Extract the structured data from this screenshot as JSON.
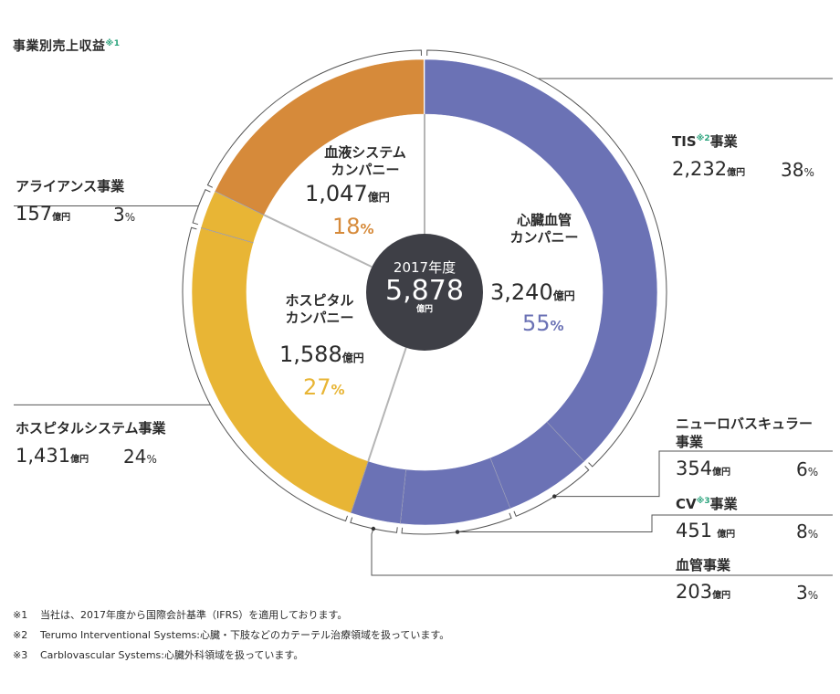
{
  "title": "事業別売上収益",
  "title_mark": "※1",
  "center": {
    "year_label": "2017年度",
    "total": "5,878",
    "unit": "億円"
  },
  "companies": [
    {
      "name_line1": "心臓血管",
      "name_line2": "カンパニー",
      "value": "3,240",
      "unit": "億円",
      "pct": "55",
      "pct_unit": "%",
      "color": "#6b72b5"
    },
    {
      "name_line1": "ホスピタル",
      "name_line2": "カンパニー",
      "value": "1,588",
      "unit": "億円",
      "pct": "27",
      "pct_unit": "%",
      "color": "#e8b535"
    },
    {
      "name_line1": "血液システム",
      "name_line2": "カンパニー",
      "value": "1,047",
      "unit": "億円",
      "pct": "18",
      "pct_unit": "%",
      "color": "#d68a3a"
    }
  ],
  "segments": {
    "tis": {
      "name": "TIS",
      "mark": "※2",
      "suffix": "事業",
      "value": "2,232",
      "unit": "億円",
      "pct": "38",
      "pct_unit": "%"
    },
    "neuro": {
      "name_line1": "ニューロバスキュラー",
      "name_line2": "事業",
      "value": "354",
      "unit": "億円",
      "pct": "6",
      "pct_unit": "%"
    },
    "cv": {
      "name": "CV",
      "mark": "※3",
      "suffix": "事業",
      "value": "451",
      "unit": "億円",
      "pct": "8",
      "pct_unit": "%"
    },
    "vascular": {
      "name": "血管事業",
      "value": "203",
      "unit": "億円",
      "pct": "3",
      "pct_unit": "%"
    },
    "alliance": {
      "name": "アライアンス事業",
      "value": "157",
      "unit": "億円",
      "pct": "3",
      "pct_unit": "%"
    },
    "hospital_system": {
      "name": "ホスピタルシステム事業",
      "value": "1,431",
      "unit": "億円",
      "pct": "24",
      "pct_unit": "%"
    }
  },
  "footnotes": [
    {
      "mark": "※1",
      "text": "当社は、2017年度から国際会計基準（IFRS）を適用しております。"
    },
    {
      "mark": "※2",
      "text": "Terumo Interventional Systems:心臓・下肢などのカテーテル治療領域を扱っています。"
    },
    {
      "mark": "※3",
      "text": "Carblovascular Systems:心臓外科領域を扱っています。"
    }
  ],
  "chart_data": {
    "type": "pie",
    "title": "事業別売上収益",
    "total": 5878,
    "unit": "億円",
    "inner_ring": [
      {
        "name": "心臓血管カンパニー",
        "value": 3240,
        "pct": 55,
        "color": "#ffffff"
      },
      {
        "name": "ホスピタルカンパニー",
        "value": 1588,
        "pct": 27,
        "color": "#ffffff"
      },
      {
        "name": "血液システムカンパニー",
        "value": 1047,
        "pct": 18,
        "color": "#ffffff"
      }
    ],
    "outer_ring": [
      {
        "name": "TIS事業",
        "value": 2232,
        "pct": 38,
        "color": "#6b72b5"
      },
      {
        "name": "ニューロバスキュラー事業",
        "value": 354,
        "pct": 6,
        "color": "#6b72b5"
      },
      {
        "name": "CV事業",
        "value": 451,
        "pct": 8,
        "color": "#6b72b5"
      },
      {
        "name": "血管事業",
        "value": 203,
        "pct": 3,
        "color": "#6b72b5"
      },
      {
        "name": "ホスピタルシステム事業",
        "value": 1431,
        "pct": 24,
        "color": "#e8b535"
      },
      {
        "name": "アライアンス事業",
        "value": 157,
        "pct": 3,
        "color": "#e8b535"
      },
      {
        "name": "血液システムカンパニー",
        "value": 1047,
        "pct": 18,
        "color": "#d68a3a"
      }
    ]
  }
}
